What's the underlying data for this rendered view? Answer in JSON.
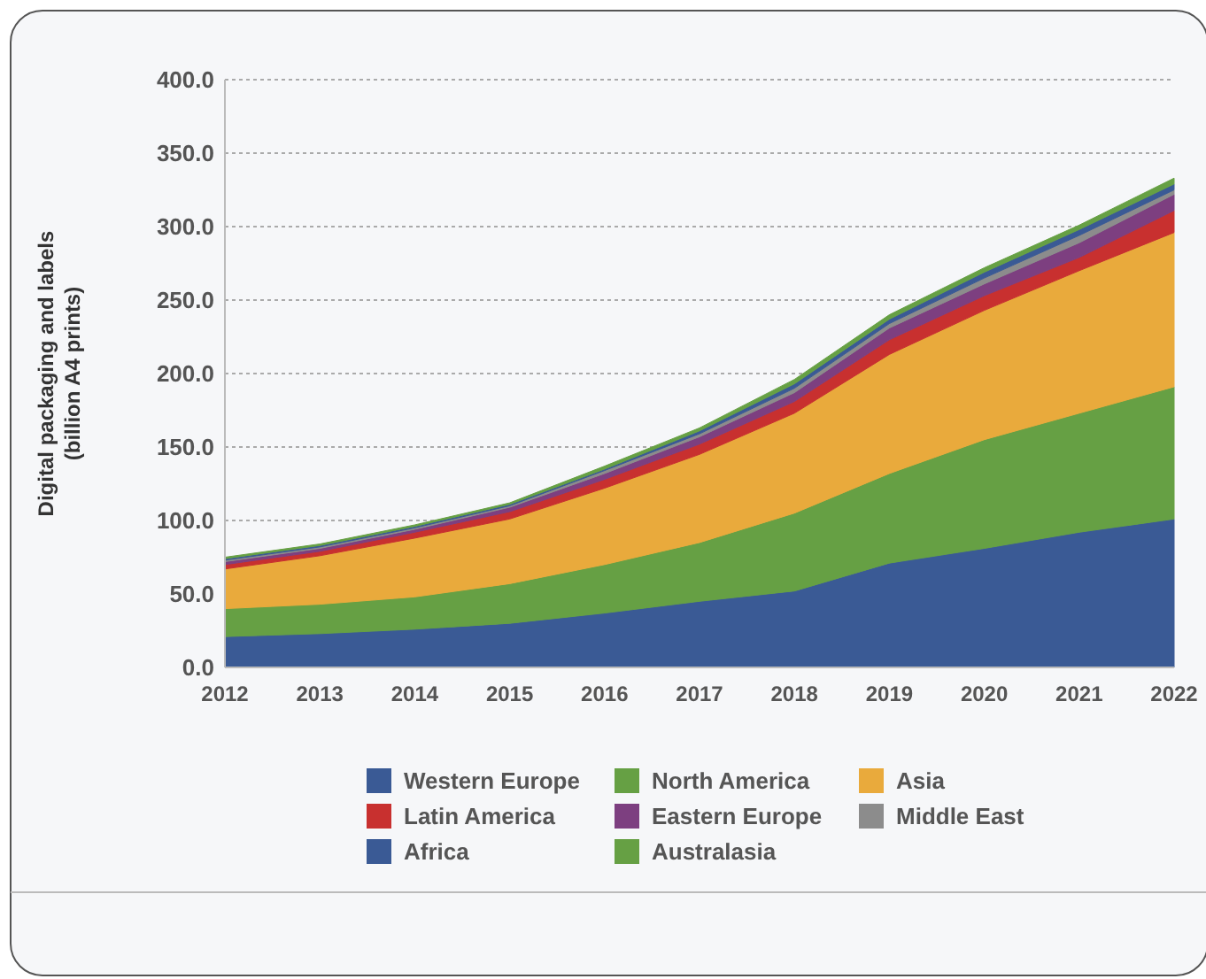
{
  "chart_data": {
    "type": "area",
    "stacked": true,
    "ylabel": "Digital packaging and labels\n(billion A4 prints)",
    "x": [
      2012,
      2013,
      2014,
      2015,
      2016,
      2017,
      2018,
      2019,
      2020,
      2021,
      2022
    ],
    "xlim": [
      2012,
      2022
    ],
    "xticks": [
      2012,
      2013,
      2014,
      2015,
      2016,
      2017,
      2018,
      2019,
      2020,
      2021,
      2022
    ],
    "ylim": [
      0,
      400
    ],
    "yticks": [
      {
        "value": 0,
        "label": "0.0"
      },
      {
        "value": 50,
        "label": "50.0"
      },
      {
        "value": 100,
        "label": "100.0"
      },
      {
        "value": 150,
        "label": "150.0"
      },
      {
        "value": 200,
        "label": "200.0"
      },
      {
        "value": 250,
        "label": "250.0"
      },
      {
        "value": 300,
        "label": "300.0"
      },
      {
        "value": 350,
        "label": "350.0"
      },
      {
        "value": 400,
        "label": "400.0"
      }
    ],
    "grid": "y",
    "legend": "bottom",
    "series": [
      {
        "name": "Western Europe",
        "color": "#3a5a95",
        "values": [
          21,
          23,
          26,
          30,
          37,
          45,
          52,
          71,
          81,
          92,
          101
        ]
      },
      {
        "name": "North America",
        "color": "#66a044",
        "values": [
          19,
          20,
          22,
          27,
          33,
          40,
          53,
          61,
          74,
          81,
          90
        ]
      },
      {
        "name": "Asia",
        "color": "#e9aa3c",
        "values": [
          27,
          33,
          40,
          44,
          52,
          60,
          68,
          81,
          88,
          97,
          105
        ]
      },
      {
        "name": "Latin America",
        "color": "#c8302f",
        "values": [
          3,
          3,
          4,
          5,
          6,
          7,
          8,
          10,
          10,
          9,
          15
        ]
      },
      {
        "name": "Eastern Europe",
        "color": "#7d3f80",
        "values": [
          2,
          2,
          2,
          3,
          4,
          5,
          6,
          8,
          8,
          10,
          11
        ]
      },
      {
        "name": "Middle East",
        "color": "#8c8c8c",
        "values": [
          1,
          1,
          1,
          1,
          2,
          2,
          3,
          3,
          4,
          5,
          3
        ]
      },
      {
        "name": "Africa",
        "color": "#3a5a95",
        "values": [
          1,
          1,
          1,
          1,
          1,
          2,
          3,
          3,
          4,
          4,
          4
        ]
      },
      {
        "name": "Australasia",
        "color": "#66a044",
        "values": [
          1,
          1,
          1,
          1,
          2,
          2,
          3,
          3,
          3,
          3,
          4
        ]
      }
    ]
  }
}
